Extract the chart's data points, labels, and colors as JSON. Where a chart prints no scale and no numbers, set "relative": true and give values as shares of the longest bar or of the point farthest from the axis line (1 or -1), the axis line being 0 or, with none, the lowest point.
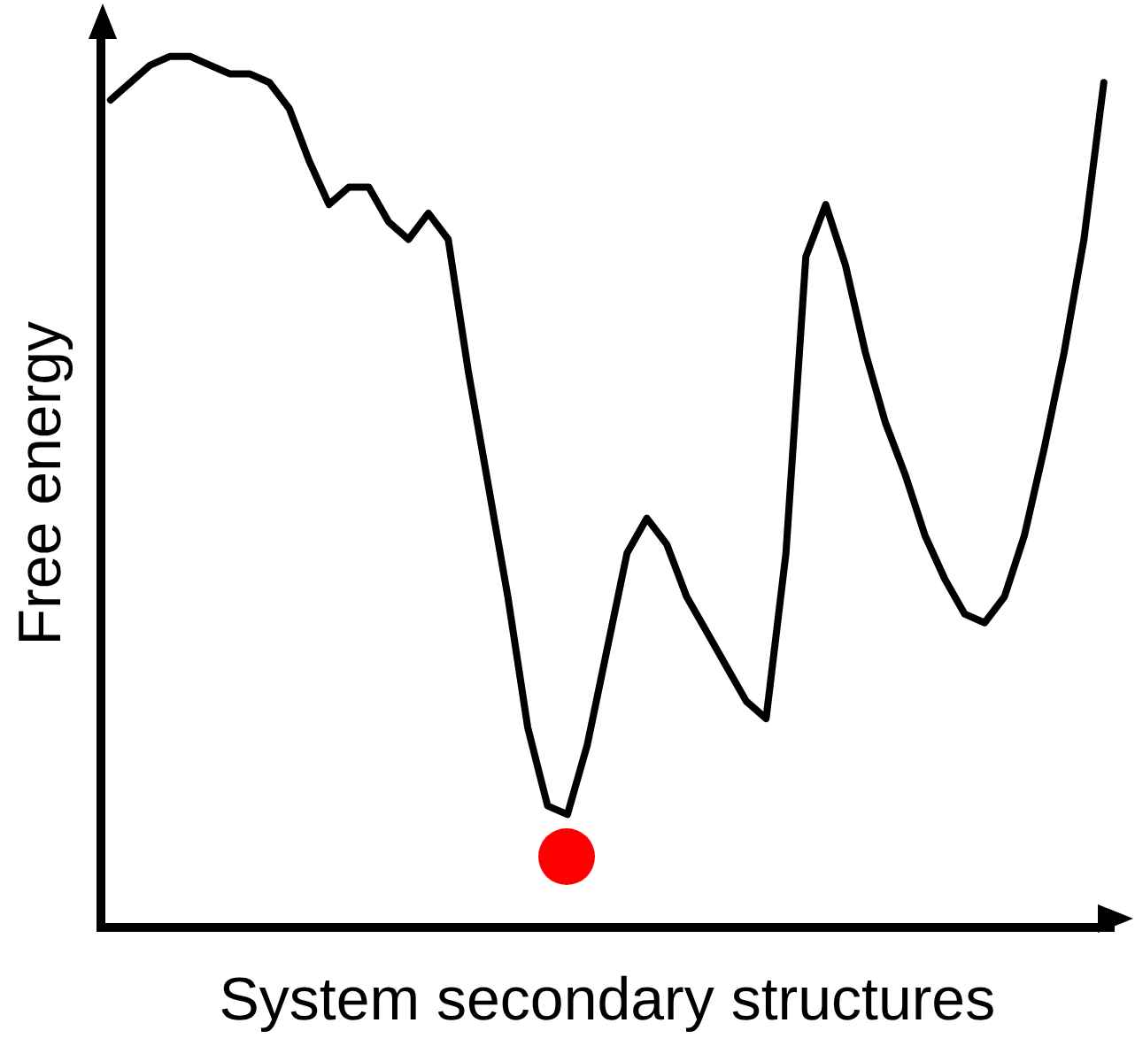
{
  "chart_data": {
    "type": "line",
    "relative": true,
    "xlabel": "System secondary structures",
    "ylabel": "Free energy",
    "grid": false,
    "legend": false,
    "tick_labels": false,
    "marker": "none",
    "categories": [
      null,
      null,
      null,
      null,
      null,
      null,
      null,
      null,
      null,
      null,
      null,
      null,
      null,
      null,
      null,
      null,
      null,
      null,
      null,
      null,
      null,
      null,
      null,
      null,
      null,
      null,
      null,
      null,
      null,
      null,
      null,
      null,
      null,
      null,
      null,
      null,
      null,
      null,
      null,
      null,
      null,
      null,
      null,
      null,
      null,
      null,
      null,
      null,
      null,
      null,
      null
    ],
    "series": [
      {
        "color": "#000000",
        "values": [
          0.95,
          0.97,
          0.99,
          1.0,
          1.0,
          0.99,
          0.98,
          0.98,
          0.97,
          0.94,
          0.88,
          0.83,
          0.85,
          0.85,
          0.81,
          0.79,
          0.82,
          0.79,
          0.64,
          0.51,
          0.38,
          0.23,
          0.14,
          0.13,
          0.21,
          0.32,
          0.43,
          0.47,
          0.44,
          0.38,
          0.34,
          0.3,
          0.26,
          0.24,
          0.43,
          0.77,
          0.83,
          0.76,
          0.66,
          0.58,
          0.52,
          0.45,
          0.4,
          0.36,
          0.35,
          0.38,
          0.45,
          0.55,
          0.66,
          0.79,
          0.97
        ]
      }
    ]
  }
}
